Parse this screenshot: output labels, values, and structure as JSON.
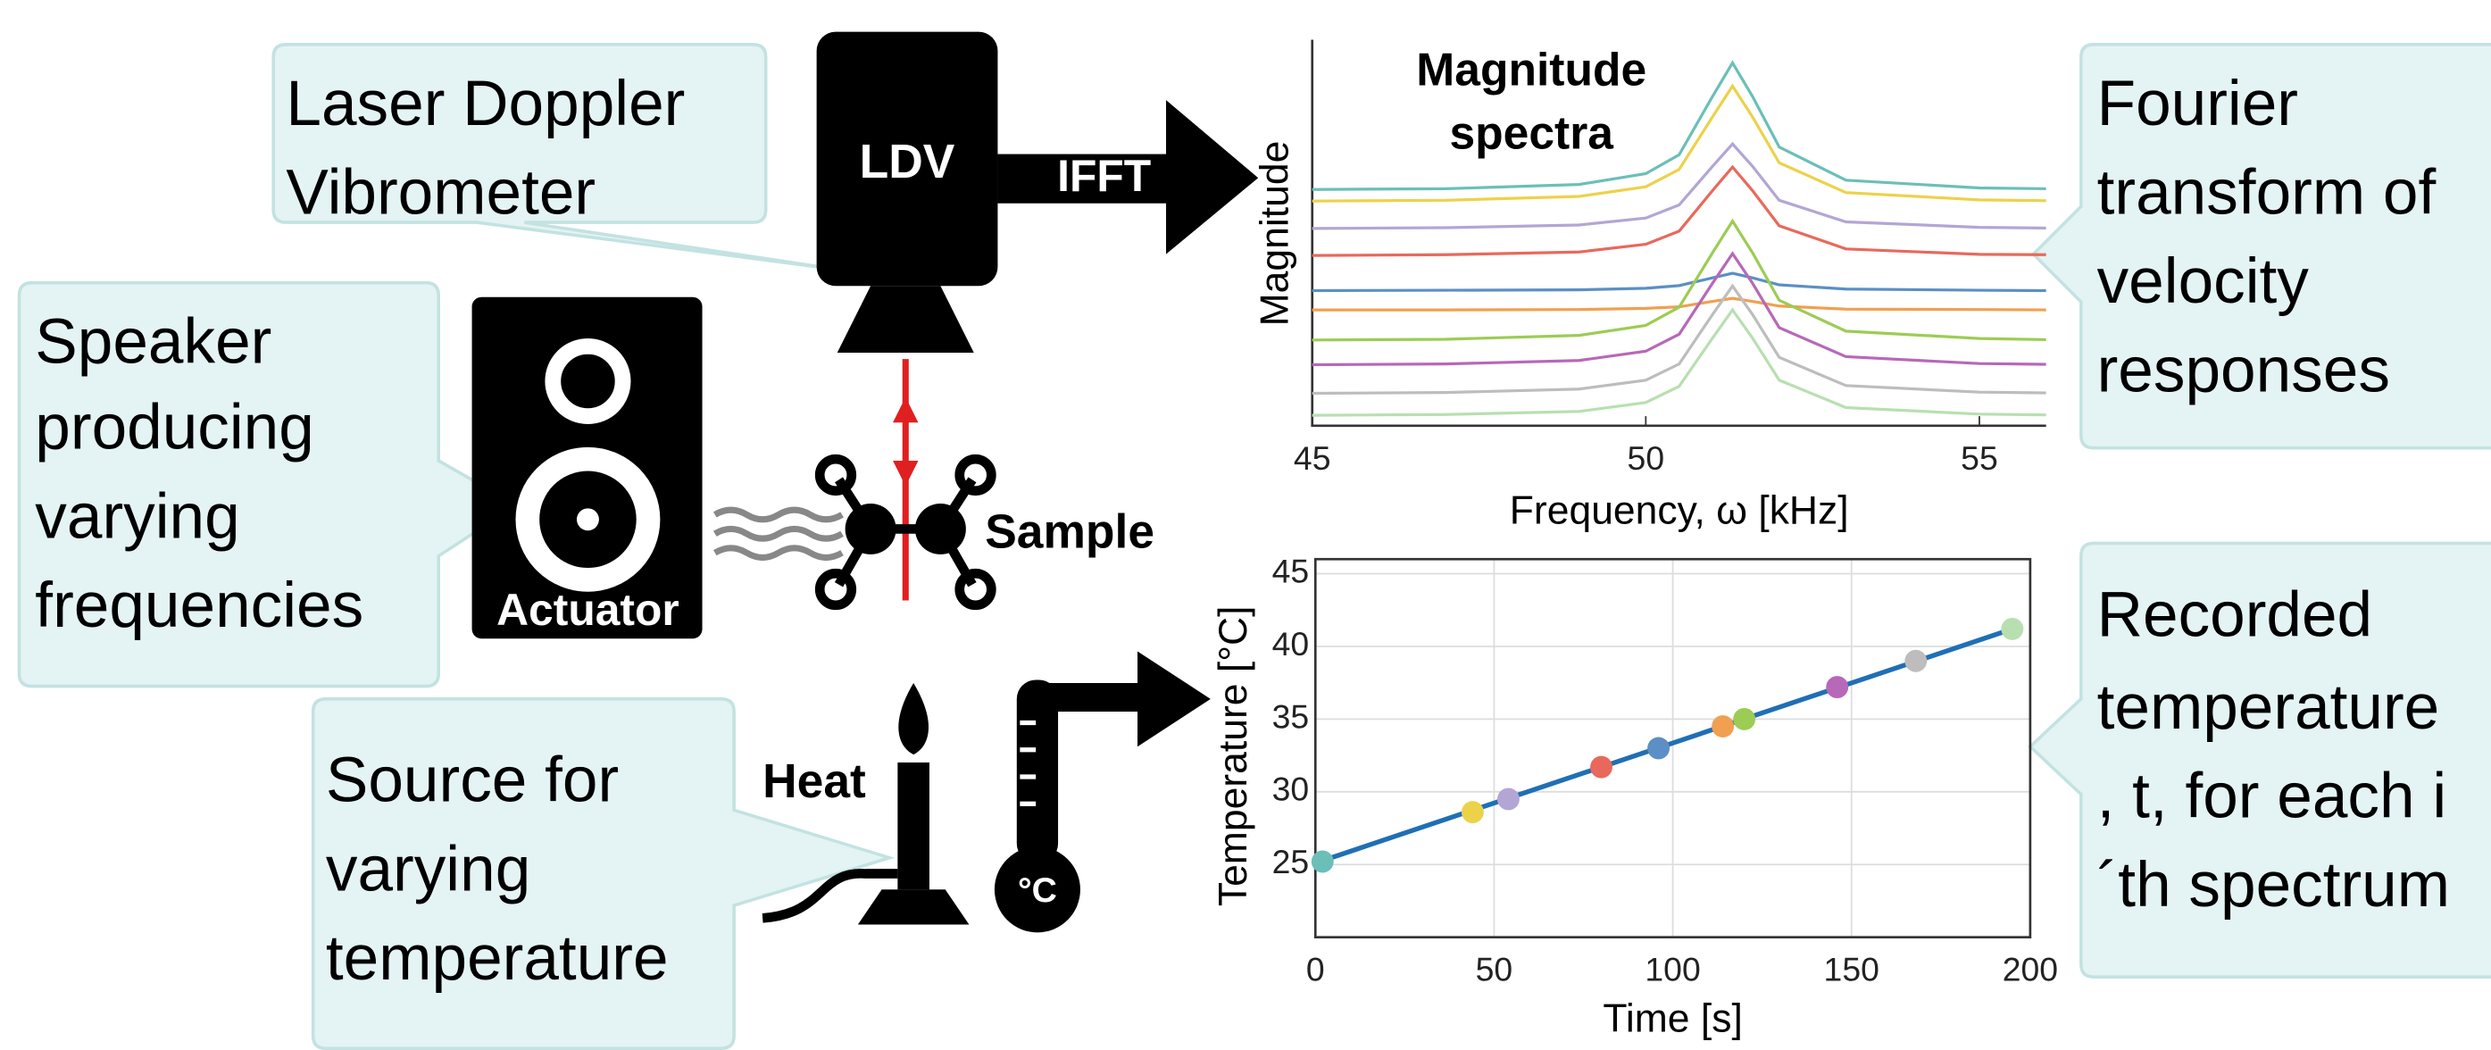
{
  "callouts": [
    {
      "lines": [
        "Laser Doppler",
        "Vibrometer"
      ]
    },
    {
      "lines": [
        "Speaker",
        "producing",
        "varying",
        "frequencies"
      ]
    },
    {
      "lines": [
        "Source for",
        "varying",
        "temperature"
      ]
    },
    {
      "lines": [
        "Fourier",
        "transform of",
        "velocity",
        "responses"
      ]
    },
    {
      "lines": [
        "Recorded",
        "temperature",
        ", t, for each i",
        "´th spectrum"
      ]
    }
  ],
  "labels": {
    "ldv": "LDV",
    "ifft": "IFFT",
    "actuator": "Actuator",
    "sample": "Sample",
    "heat": "Heat",
    "celsius": "°C"
  },
  "spectra_chart": {
    "type": "line",
    "title_lines": [
      "Magnitude",
      "spectra"
    ],
    "ylabel": "Magnitude",
    "xlabel": "Frequency, ω [kHz]",
    "xlim": [
      45,
      56
    ],
    "xticks": [
      45,
      50,
      55
    ],
    "ylim": [
      0,
      10
    ],
    "x": [
      45,
      47,
      49,
      50,
      50.5,
      51,
      51.3,
      51.6,
      52,
      53,
      55,
      56
    ],
    "series": [
      {
        "color": "#6bbfb8",
        "values": [
          6.12,
          6.14,
          6.25,
          6.53,
          7.02,
          8.53,
          9.4,
          8.53,
          7.22,
          6.36,
          6.16,
          6.14
        ]
      },
      {
        "color": "#ecd24a",
        "values": [
          5.82,
          5.84,
          5.94,
          6.19,
          6.64,
          8.0,
          8.8,
          8.0,
          6.81,
          6.04,
          5.85,
          5.83
        ]
      },
      {
        "color": "#b3a6d4",
        "values": [
          5.11,
          5.13,
          5.2,
          5.38,
          5.72,
          6.72,
          7.3,
          6.72,
          5.84,
          5.28,
          5.14,
          5.12
        ]
      },
      {
        "color": "#e8695b",
        "values": [
          4.41,
          4.43,
          4.5,
          4.7,
          5.04,
          6.09,
          6.7,
          6.09,
          5.18,
          4.58,
          4.44,
          4.43
        ]
      },
      {
        "color": "#5b8fc5",
        "values": [
          3.5,
          3.51,
          3.52,
          3.56,
          3.63,
          3.83,
          3.95,
          3.83,
          3.65,
          3.54,
          3.51,
          3.5
        ]
      },
      {
        "color": "#f0a050",
        "values": [
          3.0,
          3.0,
          3.01,
          3.04,
          3.08,
          3.22,
          3.3,
          3.22,
          3.1,
          3.02,
          3.01,
          3.0
        ]
      },
      {
        "color": "#9ccc54",
        "values": [
          2.22,
          2.24,
          2.34,
          2.6,
          3.07,
          4.48,
          5.3,
          4.48,
          3.25,
          2.45,
          2.26,
          2.23
        ]
      },
      {
        "color": "#b768b8",
        "values": [
          1.58,
          1.6,
          1.69,
          1.93,
          2.37,
          3.69,
          4.46,
          3.69,
          2.54,
          1.79,
          1.61,
          1.59
        ]
      },
      {
        "color": "#bdbdbd",
        "values": [
          0.84,
          0.86,
          0.95,
          1.18,
          1.6,
          2.88,
          3.62,
          2.88,
          1.77,
          1.04,
          0.87,
          0.85
        ]
      },
      {
        "color": "#b8dfb0",
        "values": [
          0.27,
          0.29,
          0.37,
          0.6,
          1.02,
          2.27,
          3.0,
          2.27,
          1.18,
          0.47,
          0.3,
          0.28
        ]
      }
    ]
  },
  "temperature_chart": {
    "type": "scatter",
    "ylabel": "Temperature [°C]",
    "xlabel": "Time [s]",
    "xlim": [
      0,
      200
    ],
    "xticks": [
      0,
      50,
      100,
      150,
      200
    ],
    "ylim": [
      20,
      46
    ],
    "yticks": [
      25,
      30,
      35,
      40,
      45
    ],
    "grid": true,
    "line": {
      "color": "#1f6fb5",
      "x": [
        0,
        195
      ],
      "values": [
        25.1,
        41.2
      ]
    },
    "x": [
      2,
      44,
      54,
      80,
      96,
      114,
      120,
      146,
      168,
      195
    ],
    "values": [
      25.2,
      28.6,
      29.5,
      31.7,
      33.0,
      34.5,
      35.0,
      37.2,
      39.0,
      41.2
    ],
    "colors": [
      "#6bbfb8",
      "#ecd24a",
      "#b3a6d4",
      "#e8695b",
      "#5b8fc5",
      "#f0a050",
      "#9ccc54",
      "#b768b8",
      "#bdbdbd",
      "#b8dfb0"
    ]
  }
}
